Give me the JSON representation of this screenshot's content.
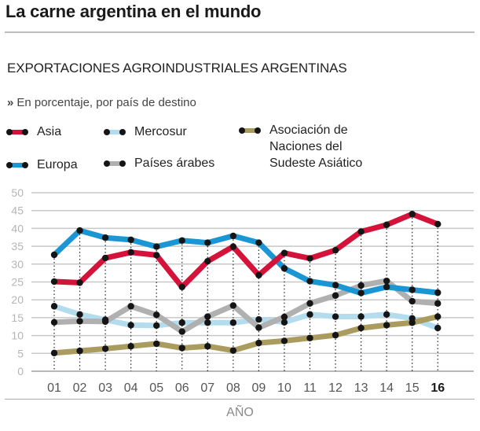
{
  "header": {
    "title": "La carne argentina en el mundo",
    "subtitle": "EXPORTACIONES AGROINDUSTRIALES ARGENTINAS",
    "unit_marker": "»",
    "unit_note": "En porcentaje, por país de destino"
  },
  "legend": [
    {
      "key": "asia",
      "label": "Asia",
      "color": "#d4123a"
    },
    {
      "key": "europa",
      "label": "Europa",
      "color": "#1a96d4"
    },
    {
      "key": "mercosur",
      "label": "Mercosur",
      "color": "#b3dcee"
    },
    {
      "key": "arabes",
      "label": "Países árabes",
      "color": "#b0b0b0"
    },
    {
      "key": "asean",
      "label": "Asociación de Naciones del Sudeste Asiático",
      "color": "#a99c5e"
    }
  ],
  "legend_lines": {
    "asean": [
      "Asociación de",
      "Naciones del",
      "Sudeste Asiático"
    ]
  },
  "chart_data": {
    "type": "line",
    "title": "EXPORTACIONES AGROINDUSTRIALES ARGENTINAS",
    "subtitle": "En porcentaje, por país de destino",
    "xlabel": "AÑO",
    "ylabel": "",
    "x": [
      "01",
      "02",
      "03",
      "04",
      "05",
      "06",
      "07",
      "08",
      "09",
      "10",
      "11",
      "12",
      "13",
      "14",
      "15",
      "16"
    ],
    "highlighted_x": "16",
    "ylim": [
      0,
      50
    ],
    "yticks": [
      0,
      5,
      10,
      15,
      20,
      25,
      30,
      35,
      40,
      45,
      50
    ],
    "grid": true,
    "legend_position": "top-left",
    "series": [
      {
        "name": "Mercosur",
        "key": "mercosur",
        "color": "#b3dcee",
        "values": [
          18.2,
          15.9,
          14.4,
          12.9,
          12.8,
          13.6,
          13.6,
          13.6,
          14.5,
          13.7,
          15.9,
          15.3,
          15.3,
          15.9,
          14.8,
          12.1
        ]
      },
      {
        "name": "Asociación de Naciones del Sudeste Asiático",
        "key": "asean",
        "color": "#a99c5e",
        "values": [
          5.1,
          5.7,
          6.3,
          7.0,
          7.7,
          6.5,
          7.0,
          5.8,
          7.9,
          8.5,
          9.3,
          10.1,
          12.1,
          12.9,
          13.6,
          15.3
        ]
      },
      {
        "name": "Países árabes",
        "key": "arabes",
        "color": "#b0b0b0",
        "values": [
          13.7,
          14.0,
          13.9,
          18.2,
          15.8,
          11.1,
          15.3,
          18.4,
          12.2,
          15.2,
          19.0,
          21.2,
          24.0,
          25.3,
          19.6,
          19.0
        ]
      },
      {
        "name": "Europa",
        "key": "europa",
        "color": "#1a96d4",
        "values": [
          32.6,
          39.4,
          37.4,
          36.8,
          34.9,
          36.6,
          36.0,
          37.9,
          36.0,
          28.8,
          25.2,
          24.1,
          21.9,
          23.6,
          22.8,
          22.0
        ]
      },
      {
        "name": "Asia",
        "key": "asia",
        "color": "#d4123a",
        "values": [
          25.1,
          24.8,
          31.7,
          33.3,
          32.5,
          23.6,
          30.8,
          34.9,
          26.9,
          33.1,
          31.6,
          33.9,
          39.1,
          41.0,
          44.0,
          41.2
        ]
      }
    ]
  }
}
